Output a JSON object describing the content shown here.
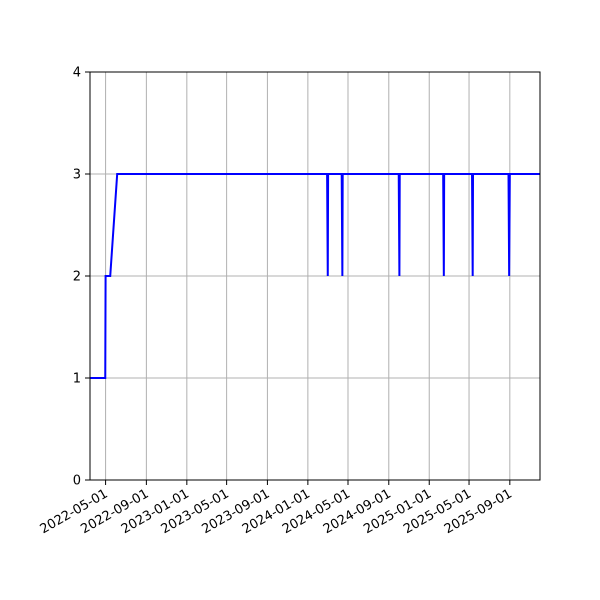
{
  "chart_data": {
    "type": "line",
    "title": "",
    "xlabel": "",
    "ylabel": "",
    "grid": true,
    "colors": {
      "line": "#0000ff",
      "grid": "#b0b0b0",
      "axes": "#000000"
    },
    "xlim": [
      "2022-03-15",
      "2025-12-01"
    ],
    "ylim": [
      0,
      4
    ],
    "yticks": [
      0,
      1,
      2,
      3,
      4
    ],
    "xticks": [
      "2022-05-01",
      "2022-09-01",
      "2023-01-01",
      "2023-05-01",
      "2023-09-01",
      "2024-01-01",
      "2024-05-01",
      "2024-09-01",
      "2025-01-01",
      "2025-05-01",
      "2025-09-01"
    ],
    "series": [
      {
        "points": [
          [
            "2022-03-15",
            1
          ],
          [
            "2022-04-30",
            1
          ],
          [
            "2022-05-01",
            2
          ],
          [
            "2022-05-15",
            2
          ],
          [
            "2022-06-05",
            3
          ],
          [
            "2024-02-28",
            3
          ],
          [
            "2024-03-01",
            2
          ],
          [
            "2024-03-02",
            3
          ],
          [
            "2024-04-12",
            3
          ],
          [
            "2024-04-14",
            2
          ],
          [
            "2024-04-15",
            3
          ],
          [
            "2024-10-01",
            3
          ],
          [
            "2024-10-03",
            2
          ],
          [
            "2024-10-04",
            3
          ],
          [
            "2025-02-12",
            3
          ],
          [
            "2025-02-14",
            2
          ],
          [
            "2025-02-15",
            3
          ],
          [
            "2025-05-10",
            3
          ],
          [
            "2025-05-12",
            2
          ],
          [
            "2025-05-13",
            3
          ],
          [
            "2025-08-28",
            3
          ],
          [
            "2025-08-30",
            2
          ],
          [
            "2025-09-01",
            3
          ],
          [
            "2025-12-01",
            3
          ]
        ]
      }
    ]
  }
}
